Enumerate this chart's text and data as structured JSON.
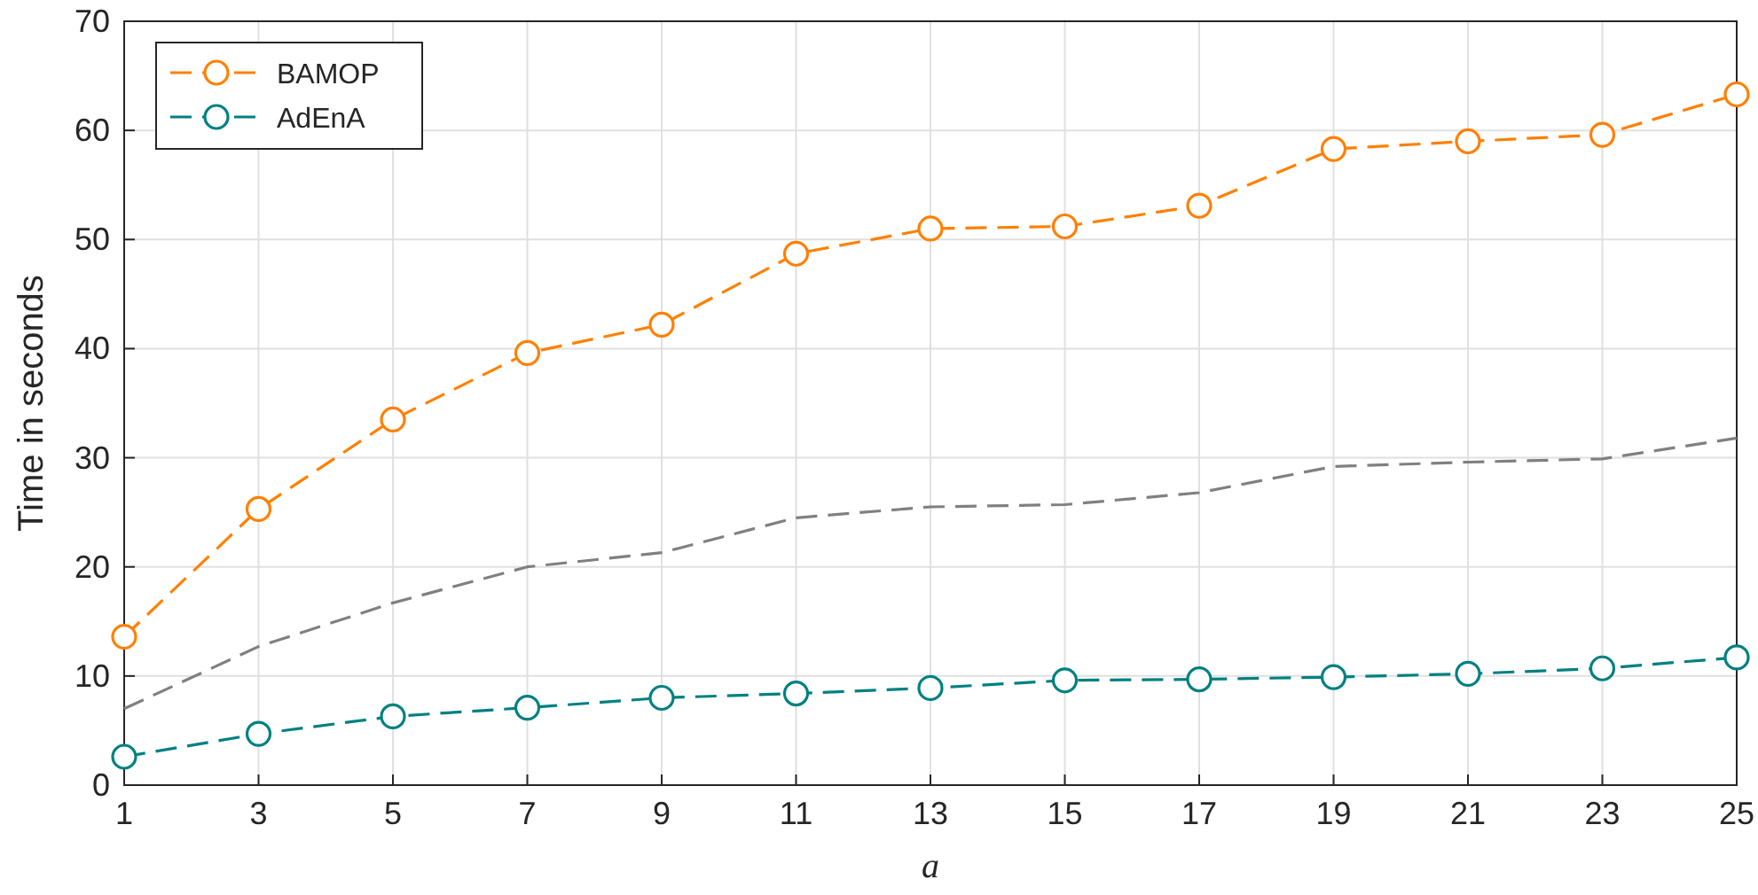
{
  "chart_data": {
    "type": "line",
    "xlabel": "a",
    "ylabel": "Time in seconds",
    "x": [
      1,
      3,
      5,
      7,
      9,
      11,
      13,
      15,
      17,
      19,
      21,
      23,
      25
    ],
    "series": [
      {
        "name": "BAMOP",
        "color": "#ff8000",
        "marker": "circle",
        "line_style": "dashed",
        "values": [
          13.6,
          25.3,
          33.5,
          39.6,
          42.2,
          48.7,
          51.0,
          51.2,
          53.1,
          58.3,
          59.0,
          59.6,
          63.3
        ]
      },
      {
        "color": "#808080",
        "marker": "none",
        "line_style": "dashed",
        "values": [
          7.0,
          12.7,
          16.7,
          20.0,
          21.3,
          24.5,
          25.5,
          25.7,
          26.8,
          29.2,
          29.6,
          29.9,
          31.8
        ]
      },
      {
        "name": "AdEnA",
        "color": "#008080",
        "marker": "circle",
        "line_style": "dashed",
        "values": [
          2.6,
          4.7,
          6.3,
          7.1,
          8.0,
          8.4,
          8.9,
          9.6,
          9.7,
          9.9,
          10.2,
          10.7,
          11.7
        ]
      }
    ],
    "xlim": [
      1,
      25
    ],
    "xticks": [
      1,
      3,
      5,
      7,
      9,
      11,
      13,
      15,
      17,
      19,
      21,
      23,
      25
    ],
    "ylim": [
      0,
      70
    ],
    "yticks": [
      0,
      10,
      20,
      30,
      40,
      50,
      60,
      70
    ],
    "grid": true,
    "legend": "top left"
  }
}
